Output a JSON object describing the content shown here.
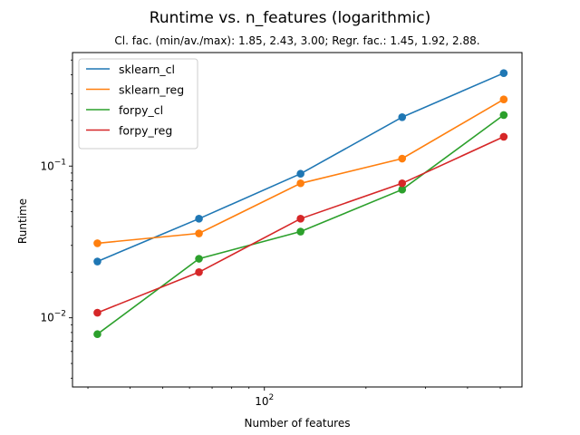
{
  "figure": {
    "title": "Runtime vs. n_features (logarithmic)",
    "subtitle": "Cl. fac. (min/av./max): 1.85, 2.43, 3.00; Regr. fac.: 1.45, 1.92, 2.88."
  },
  "chart_data": {
    "type": "line",
    "title": "Runtime vs. n_features (logarithmic)",
    "subtitle": "Cl. fac. (min/av./max): 1.85, 2.43, 3.00; Regr. fac.: 1.45, 1.92, 2.88.",
    "xlabel": "Number of features",
    "ylabel": "Runtime",
    "xscale": "log",
    "yscale": "log",
    "xlim": [
      27,
      580
    ],
    "ylim": [
      0.0035,
      0.56
    ],
    "x": [
      32,
      64,
      128,
      256,
      512
    ],
    "xticks": [
      {
        "value": 100,
        "base": "10",
        "exp": "2"
      }
    ],
    "yticks": [
      {
        "value": 0.01,
        "base": "10",
        "exp": "−2"
      },
      {
        "value": 0.1,
        "base": "10",
        "exp": "−1"
      }
    ],
    "grid": false,
    "legend": "top-left",
    "series": [
      {
        "name": "sklearn_cl",
        "color": "#1f77b4",
        "values": [
          0.0235,
          0.045,
          0.089,
          0.21,
          0.41
        ]
      },
      {
        "name": "sklearn_reg",
        "color": "#ff7f0e",
        "values": [
          0.031,
          0.036,
          0.077,
          0.112,
          0.275
        ]
      },
      {
        "name": "forpy_cl",
        "color": "#2ca02c",
        "values": [
          0.0078,
          0.0245,
          0.037,
          0.07,
          0.217
        ]
      },
      {
        "name": "forpy_reg",
        "color": "#d62728",
        "values": [
          0.0108,
          0.02,
          0.045,
          0.077,
          0.156
        ]
      }
    ]
  }
}
